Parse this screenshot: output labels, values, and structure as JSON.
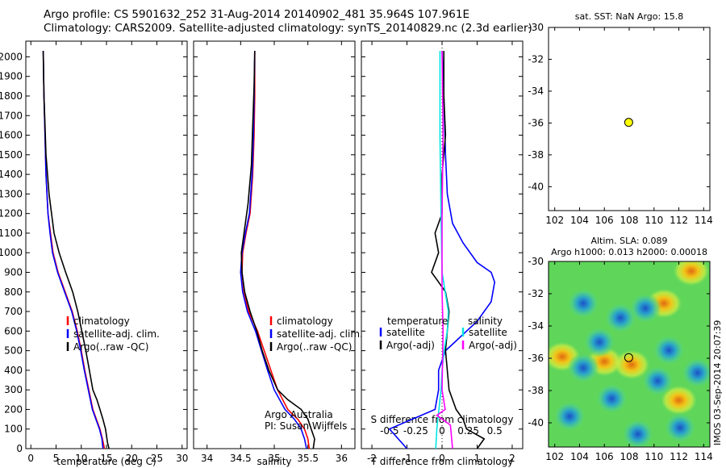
{
  "header": {
    "line1": "Argo profile: CS 5901632_252 31-Aug-2014 20140902_481 35.964S 107.961E",
    "line2": "Climatology: CARS2009. Satellite-adjusted climatology: synTS_20140829.nc (2.3d earlier)"
  },
  "colors": {
    "climatology": "#ff0000",
    "satellite": "#0000ff",
    "argo": "#000000",
    "satellite_s": "#00e5e5",
    "argo_s": "#ff00ff",
    "marker": "#ffff00"
  },
  "chart_data": [
    {
      "id": "temperature",
      "type": "line",
      "xlabel": "temperature (deg C)",
      "ylabel": "",
      "xlim": [
        -1,
        31
      ],
      "ylim": [
        2080,
        0
      ],
      "xticks": [
        "0",
        "5",
        "10",
        "15",
        "20",
        "25",
        "30"
      ],
      "yticks": [
        "0",
        "100",
        "200",
        "300",
        "400",
        "500",
        "600",
        "700",
        "800",
        "900",
        "1000",
        "1100",
        "1200",
        "1300",
        "1400",
        "1500",
        "1600",
        "1700",
        "1800",
        "1900",
        "2000"
      ],
      "legend": [
        "climatology",
        "satellite-adj. clim.",
        "Argo(..raw -QC)"
      ],
      "series": [
        {
          "name": "climatology",
          "color": "#ff0000",
          "x": [
            14.6,
            14.2,
            13.7,
            13.0,
            12.3,
            11.5,
            10.7,
            10.0,
            9.2,
            8.2,
            6.8,
            5.4,
            4.4,
            3.9,
            3.4,
            3.0,
            2.8,
            2.6,
            2.5,
            2.45
          ],
          "y": [
            0,
            50,
            100,
            150,
            200,
            300,
            400,
            500,
            600,
            700,
            800,
            900,
            1000,
            1100,
            1200,
            1400,
            1600,
            1800,
            1950,
            2030
          ]
        },
        {
          "name": "satellite-adj. clim.",
          "color": "#0000ff",
          "x": [
            14.3,
            14.1,
            13.6,
            12.9,
            12.2,
            11.4,
            10.6,
            9.9,
            9.1,
            8.1,
            6.7,
            5.3,
            4.3,
            3.8,
            3.4,
            3.0,
            2.8,
            2.6,
            2.5,
            2.45
          ],
          "y": [
            0,
            50,
            100,
            150,
            200,
            300,
            400,
            500,
            600,
            700,
            800,
            900,
            1000,
            1100,
            1200,
            1400,
            1600,
            1800,
            1950,
            2030
          ]
        },
        {
          "name": "Argo(..raw -QC)",
          "color": "#000000",
          "x": [
            15.5,
            15.2,
            14.8,
            14.3,
            13.7,
            13.1,
            12.3,
            11.6,
            10.9,
            10.1,
            9.3,
            8.3,
            6.9,
            5.6,
            4.6,
            3.6,
            3.0,
            2.8,
            2.6,
            2.5,
            2.45
          ],
          "y": [
            0,
            30,
            100,
            150,
            200,
            250,
            300,
            400,
            500,
            600,
            700,
            800,
            900,
            1000,
            1100,
            1300,
            1500,
            1650,
            1800,
            1950,
            2030
          ]
        }
      ]
    },
    {
      "id": "salinity",
      "type": "line",
      "xlabel": "salinity",
      "ylabel": "",
      "xlim": [
        33.8,
        36.2
      ],
      "ylim": [
        2080,
        0
      ],
      "xticks": [
        "34",
        "34.5",
        "35",
        "35.5",
        "36"
      ],
      "legend": [
        "climatology",
        "satellite-adj. clim.",
        "Argo(..raw -QC)"
      ],
      "annotation": [
        "Argo Australia",
        "PI: Susan Wijffels"
      ],
      "series": [
        {
          "name": "climatology",
          "color": "#ff0000",
          "x": [
            35.52,
            35.5,
            35.45,
            35.35,
            35.2,
            35.05,
            34.95,
            34.85,
            34.75,
            34.62,
            34.55,
            34.52,
            34.53,
            34.58,
            34.64,
            34.68,
            34.7,
            34.71,
            34.71
          ],
          "y": [
            0,
            50,
            100,
            150,
            200,
            300,
            400,
            500,
            600,
            700,
            800,
            900,
            1000,
            1100,
            1200,
            1400,
            1600,
            1800,
            2030
          ]
        },
        {
          "name": "satellite-adj. clim.",
          "color": "#0000ff",
          "x": [
            35.48,
            35.45,
            35.4,
            35.3,
            35.16,
            35.0,
            34.9,
            34.81,
            34.72,
            34.6,
            34.53,
            34.5,
            34.52,
            34.57,
            34.63,
            34.67,
            34.69,
            34.7,
            34.71
          ],
          "y": [
            0,
            50,
            100,
            150,
            200,
            300,
            400,
            500,
            600,
            700,
            800,
            900,
            1000,
            1100,
            1200,
            1400,
            1600,
            1800,
            2030
          ]
        },
        {
          "name": "Argo(..raw -QC)",
          "color": "#000000",
          "x": [
            35.58,
            35.6,
            35.55,
            35.5,
            35.4,
            35.2,
            35.05,
            34.92,
            34.82,
            34.74,
            34.64,
            34.56,
            34.52,
            34.51,
            34.55,
            34.61,
            34.66,
            34.68,
            34.7,
            34.71
          ],
          "y": [
            0,
            50,
            100,
            150,
            200,
            250,
            300,
            400,
            500,
            600,
            700,
            800,
            900,
            1000,
            1100,
            1250,
            1450,
            1650,
            1850,
            2030
          ]
        }
      ]
    },
    {
      "id": "difference",
      "type": "line",
      "xlabel": "T difference from climatology",
      "x2label": "S difference from climatology",
      "xlim": [
        -2.3,
        2.3
      ],
      "ylim": [
        2080,
        0
      ],
      "xticks": [
        "-2",
        "-1",
        "0",
        "1",
        "2"
      ],
      "x2ticks": [
        "-0.5",
        "-0.25",
        "0",
        "0.25",
        "0.5"
      ],
      "legend_t": {
        "title": "temperature",
        "items": [
          "satellite",
          "Argo(-adj)"
        ]
      },
      "legend_s": {
        "title": "salinity",
        "items": [
          "satellite",
          "Argo(-adj)"
        ]
      },
      "series": [
        {
          "name": "temperature satellite",
          "color": "#0000ff",
          "x": [
            -1.0,
            -1.5,
            -0.2,
            -0.1,
            -0.1,
            0.1,
            0.4,
            0.7,
            1.0,
            1.2,
            1.4,
            1.5,
            1.4,
            1.0,
            0.6,
            0.3,
            0.15,
            0.1,
            0.05,
            0.0
          ],
          "y": [
            0,
            100,
            200,
            300,
            400,
            500,
            550,
            600,
            650,
            700,
            750,
            850,
            900,
            950,
            1050,
            1150,
            1300,
            1500,
            1800,
            2030
          ]
        },
        {
          "name": "temperature Argo(-adj)",
          "color": "#000000",
          "x": [
            1.0,
            1.2,
            0.7,
            0.6,
            0.4,
            0.2,
            0.1,
            0.2,
            0.1,
            -0.1,
            -0.3,
            -0.1,
            -0.2,
            0.0,
            0.0,
            0.1,
            0.05,
            0.05
          ],
          "y": [
            0,
            50,
            100,
            150,
            200,
            300,
            500,
            700,
            800,
            850,
            900,
            1000,
            1100,
            1200,
            1400,
            1600,
            1800,
            2030
          ]
        },
        {
          "name": "salinity satellite",
          "color": "#00e5e5",
          "x": [
            -0.06,
            -0.05,
            -0.03,
            -0.01,
            0.0,
            0.02,
            0.05,
            0.06,
            0.03,
            0.0,
            -0.01,
            -0.02,
            -0.02
          ],
          "y": [
            0,
            100,
            200,
            300,
            400,
            500,
            600,
            700,
            800,
            900,
            1200,
            1600,
            2030
          ]
        },
        {
          "name": "salinity Argo(-adj)",
          "color": "#ff00ff",
          "x": [
            0.1,
            0.09,
            0.08,
            -0.05,
            0.03,
            0.0,
            0.01,
            0.0,
            0.0,
            0.01,
            0.0
          ],
          "y": [
            0,
            60,
            120,
            170,
            200,
            300,
            600,
            800,
            1200,
            1600,
            2030
          ]
        }
      ]
    },
    {
      "id": "sst_map",
      "type": "scatter",
      "title": "sat. SST: NaN Argo: 15.8",
      "xlim": [
        101.5,
        114.5
      ],
      "ylim": [
        -41.5,
        -30
      ],
      "xticks": [
        "102",
        "104",
        "106",
        "108",
        "110",
        "112",
        "114"
      ],
      "yticks": [
        "-30",
        "-32",
        "-34",
        "-36",
        "-38",
        "-40"
      ],
      "points": [
        {
          "x": 107.96,
          "y": -35.96
        }
      ]
    },
    {
      "id": "sla_map",
      "type": "heatmap",
      "title": "Altim. SLA: 0.089",
      "subtitle": "Argo h1000: 0.013 h2000: 0.00018",
      "xlim": [
        101.5,
        114.5
      ],
      "ylim": [
        -41.5,
        -30
      ],
      "xticks": [
        "102",
        "104",
        "106",
        "108",
        "110",
        "112",
        "114"
      ],
      "yticks": [
        "-30",
        "-32",
        "-34",
        "-36",
        "-38",
        "-40"
      ],
      "points": [
        {
          "x": 107.96,
          "y": -35.96
        }
      ],
      "blue_eddies": [
        {
          "x": 104.3,
          "y": -32.6
        },
        {
          "x": 105.6,
          "y": -35.0
        },
        {
          "x": 109.3,
          "y": -32.9
        },
        {
          "x": 111.2,
          "y": -35.5
        },
        {
          "x": 113.5,
          "y": -36.9
        },
        {
          "x": 106.6,
          "y": -38.5
        },
        {
          "x": 110.3,
          "y": -37.4
        },
        {
          "x": 103.2,
          "y": -39.6
        },
        {
          "x": 108.7,
          "y": -40.7
        },
        {
          "x": 112.1,
          "y": -40.3
        },
        {
          "x": 104.3,
          "y": -36.6
        },
        {
          "x": 107.3,
          "y": -33.5
        }
      ],
      "warm_eddies": [
        {
          "x": 113.0,
          "y": -30.6
        },
        {
          "x": 108.2,
          "y": -36.4
        },
        {
          "x": 106.0,
          "y": -36.2
        },
        {
          "x": 110.8,
          "y": -32.6
        },
        {
          "x": 112.0,
          "y": -38.6
        },
        {
          "x": 102.6,
          "y": -35.9
        }
      ]
    }
  ],
  "side_label": "IMOS 03-Sep-2014 20:07:39"
}
